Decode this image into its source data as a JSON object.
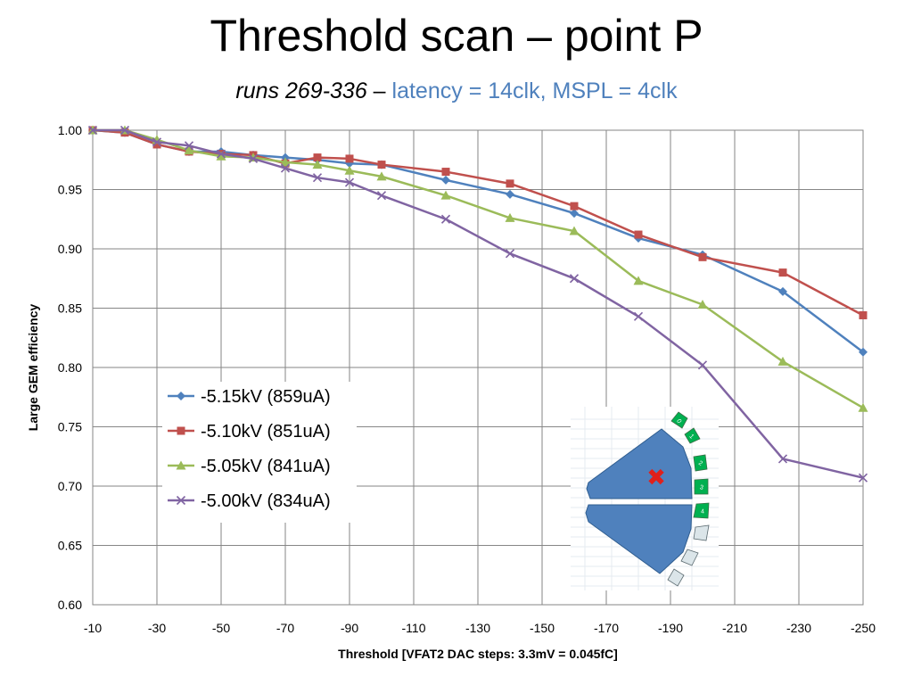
{
  "title": "Threshold scan – point P",
  "subtitle": {
    "runs": "runs 269-336",
    "dash": " – ",
    "params": "latency = 14clk, MSPL = 4clk",
    "params_color": "#4f81bd"
  },
  "chart_data": {
    "type": "line",
    "xlabel": "Threshold [VFAT2 DAC steps: 3.3mV = 0.045fC]",
    "ylabel": "Large GEM efficiency",
    "xlim": [
      -10,
      -250
    ],
    "ylim": [
      0.6,
      1.0
    ],
    "xticks": [
      -10,
      -30,
      -50,
      -70,
      -90,
      -110,
      -130,
      -150,
      -170,
      -190,
      -210,
      -230,
      -250
    ],
    "xtick_labels": [
      "-10",
      "-30",
      "-50",
      "-70",
      "-90",
      "-110",
      "-130",
      "-150",
      "-170",
      "-190",
      "-210",
      "-230",
      "-250"
    ],
    "yticks": [
      0.6,
      0.65,
      0.7,
      0.75,
      0.8,
      0.85,
      0.9,
      0.95,
      1.0
    ],
    "ytick_labels": [
      "0.60",
      "0.65",
      "0.70",
      "0.75",
      "0.80",
      "0.85",
      "0.90",
      "0.95",
      "1.00"
    ],
    "grid": true,
    "legend_position": "left-center",
    "series": [
      {
        "name": "-5.15kV (859uA)",
        "color": "#4f81bd",
        "marker": "diamond",
        "x": [
          -10,
          -20,
          -30,
          -40,
          -50,
          -60,
          -70,
          -80,
          -90,
          -100,
          -120,
          -140,
          -160,
          -180,
          -200,
          -225,
          -250
        ],
        "y": [
          1.0,
          0.998,
          0.988,
          0.982,
          0.982,
          0.979,
          0.977,
          0.975,
          0.972,
          0.971,
          0.958,
          0.946,
          0.93,
          0.909,
          0.895,
          0.864,
          0.813
        ]
      },
      {
        "name": "-5.10kV (851uA)",
        "color": "#c0504d",
        "marker": "square",
        "x": [
          -10,
          -20,
          -30,
          -40,
          -50,
          -60,
          -70,
          -80,
          -90,
          -100,
          -120,
          -140,
          -160,
          -180,
          -200,
          -225,
          -250
        ],
        "y": [
          1.0,
          0.998,
          0.988,
          0.982,
          0.98,
          0.979,
          0.972,
          0.977,
          0.976,
          0.971,
          0.965,
          0.955,
          0.936,
          0.912,
          0.893,
          0.88,
          0.844
        ]
      },
      {
        "name": "-5.05kV (841uA)",
        "color": "#9bbb59",
        "marker": "triangle",
        "x": [
          -10,
          -20,
          -30,
          -40,
          -50,
          -60,
          -70,
          -80,
          -90,
          -100,
          -120,
          -140,
          -160,
          -180,
          -200,
          -225,
          -250
        ],
        "y": [
          1.0,
          1.0,
          0.992,
          0.983,
          0.978,
          0.977,
          0.973,
          0.971,
          0.966,
          0.961,
          0.945,
          0.926,
          0.915,
          0.873,
          0.853,
          0.805,
          0.766
        ]
      },
      {
        "name": "-5.00kV (834uA)",
        "color": "#8064a2",
        "marker": "x",
        "x": [
          -10,
          -20,
          -30,
          -40,
          -50,
          -60,
          -70,
          -80,
          -90,
          -100,
          -120,
          -140,
          -160,
          -180,
          -200,
          -225,
          -250
        ],
        "y": [
          1.0,
          1.0,
          0.99,
          0.987,
          0.98,
          0.976,
          0.968,
          0.96,
          0.956,
          0.945,
          0.925,
          0.896,
          0.875,
          0.843,
          0.802,
          0.723,
          0.707
        ]
      }
    ]
  },
  "inset": {
    "segment_labels": [
      "0",
      "1",
      "2",
      "3",
      "4"
    ],
    "marker_symbol": "✖",
    "colors": {
      "chamber": "#4f81bd",
      "segment_active": "#00b050",
      "segment_inactive": "#dbe5e9",
      "marker": "#e0201b"
    }
  }
}
